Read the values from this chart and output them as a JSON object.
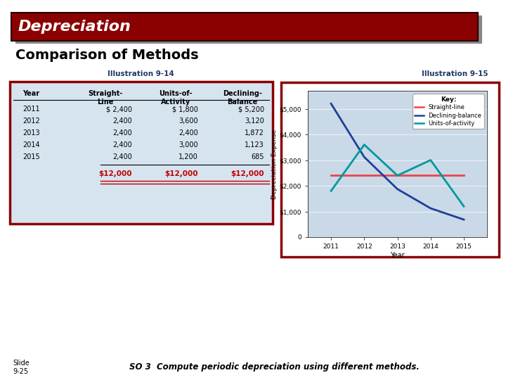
{
  "title_text": "Depreciation",
  "title_bg": "#8B0000",
  "title_text_color": "#FFFFFF",
  "subtitle": "Comparison of Methods",
  "illus_14_label": "Illustration 9-14",
  "illus_15_label": "Illustration 9-15",
  "table_years": [
    "2011",
    "2012",
    "2013",
    "2014",
    "2015"
  ],
  "table_sl": [
    "$ 2,400",
    "2,400",
    "2,400",
    "2,400",
    "2,400"
  ],
  "table_ua": [
    "$ 1,800",
    "3,600",
    "2,400",
    "3,000",
    "1,200"
  ],
  "table_db": [
    "$ 5,200",
    "3,120",
    "1,872",
    "1,123",
    "685"
  ],
  "table_total_sl": "$12,000",
  "table_total_ua": "$12,000",
  "table_total_db": "$12,000",
  "table_bg": "#D6E4F0",
  "table_border": "#8B0000",
  "total_color": "#C00000",
  "years": [
    2011,
    2012,
    2013,
    2014,
    2015
  ],
  "sl_values": [
    2400,
    2400,
    2400,
    2400,
    2400
  ],
  "db_values": [
    5200,
    3120,
    1872,
    1123,
    685
  ],
  "ua_values": [
    1800,
    3600,
    2400,
    3000,
    1200
  ],
  "sl_color": "#E8474C",
  "db_color": "#1F3F99",
  "ua_color": "#009999",
  "chart_bg": "#C9D9E8",
  "chart_border": "#8B0000",
  "ylabel": "Depreciation Expense",
  "xlabel": "Year",
  "y_ticks": [
    0,
    1000,
    2000,
    3000,
    4000,
    5000
  ],
  "y_tick_labels": [
    "0",
    "$1,000",
    "$2,000",
    "$3,000",
    "$4,000",
    "$5,000"
  ],
  "key_label": "Key:",
  "key_sl": "Straight-line",
  "key_db": "Declining-balance",
  "key_ua": "Units-of-activity",
  "slide_label": "Slide\n9-25",
  "bottom_text": "SO 3  Compute periodic depreciation using different methods.",
  "bg_color": "#FFFFFF",
  "shadow_color": "#555555"
}
